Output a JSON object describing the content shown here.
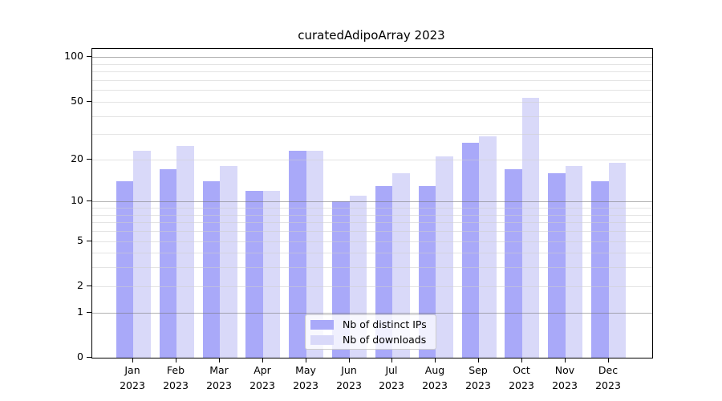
{
  "title": "curatedAdipoArray 2023",
  "chart_data": {
    "type": "bar",
    "title": "curatedAdipoArray 2023",
    "scale": "log1p",
    "categories": [
      "Jan",
      "Feb",
      "Mar",
      "Apr",
      "May",
      "Jun",
      "Jul",
      "Aug",
      "Sep",
      "Oct",
      "Nov",
      "Dec"
    ],
    "x_tick_second_line": "2023",
    "series": [
      {
        "name": "Nb of distinct IPs",
        "color": "#a9a9f9",
        "values": [
          14,
          17,
          14,
          12,
          23,
          10,
          13,
          13,
          26,
          17,
          16,
          14
        ]
      },
      {
        "name": "Nb of downloads",
        "color": "#d9d9f9",
        "values": [
          23,
          25,
          18,
          12,
          23,
          11,
          16,
          21,
          29,
          53,
          18,
          19
        ]
      }
    ],
    "xlabel": "",
    "ylabel": "",
    "ylim": [
      0,
      100
    ],
    "y_ticks": [
      100,
      50,
      20,
      10,
      5,
      2,
      1,
      0
    ],
    "y_major_gridlines": [
      1,
      10,
      100
    ],
    "y_minor_gridlines": [
      2,
      3,
      4,
      5,
      6,
      7,
      8,
      9,
      20,
      30,
      40,
      50,
      60,
      70,
      80,
      90
    ],
    "grid": "on",
    "legend_position": "bottom-center",
    "colors": {
      "bar_dark": "#a9a9f9",
      "bar_light": "#d9d9f9",
      "major_grid": "#b4b4b4",
      "minor_grid": "#ececec",
      "axis": "#000000",
      "text": "#000000",
      "legend_border": "#cccccc"
    }
  }
}
